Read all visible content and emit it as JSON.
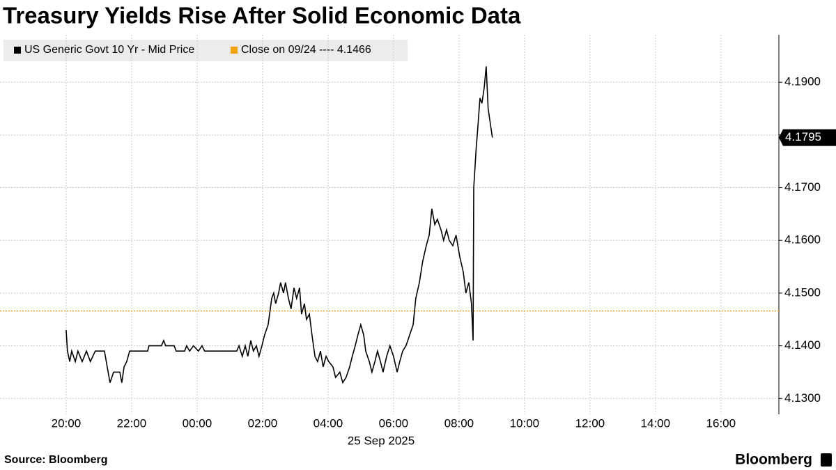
{
  "chart_data": {
    "type": "line",
    "title": "Treasury Yields Rise After Solid Economic Data",
    "xlabel": "25 Sep 2025",
    "source": "Source: Bloomberg",
    "brand": "Bloomberg",
    "xlim": [
      -2.02,
      21.77
    ],
    "xticks": [
      {
        "value": 0,
        "label": "20:00"
      },
      {
        "value": 2,
        "label": "22:00"
      },
      {
        "value": 4,
        "label": "00:00"
      },
      {
        "value": 6,
        "label": "02:00"
      },
      {
        "value": 8,
        "label": "04:00"
      },
      {
        "value": 10,
        "label": "06:00"
      },
      {
        "value": 12,
        "label": "08:00"
      },
      {
        "value": 14,
        "label": "10:00"
      },
      {
        "value": 16,
        "label": "12:00"
      },
      {
        "value": 18,
        "label": "14:00"
      },
      {
        "value": 20,
        "label": "16:00"
      }
    ],
    "ylim": [
      4.127,
      4.199
    ],
    "yticks": [
      {
        "value": 4.13,
        "label": "4.1300"
      },
      {
        "value": 4.14,
        "label": "4.1400"
      },
      {
        "value": 4.15,
        "label": "4.1500"
      },
      {
        "value": 4.16,
        "label": "4.1600"
      },
      {
        "value": 4.17,
        "label": "4.1700"
      },
      {
        "value": 4.18,
        "label": "4.1800"
      },
      {
        "value": 4.19,
        "label": "4.1900"
      }
    ],
    "grid": true,
    "x": [
      0,
      0.04,
      0.11,
      0.17,
      0.28,
      0.36,
      0.49,
      0.62,
      0.74,
      0.89,
      1.17,
      1.34,
      1.45,
      1.64,
      1.7,
      1.77,
      1.85,
      1.94,
      2.49,
      2.53,
      2.91,
      2.98,
      3.04,
      3.3,
      3.36,
      3.62,
      3.68,
      3.77,
      3.89,
      4.04,
      4.15,
      4.23,
      5.21,
      5.28,
      5.38,
      5.47,
      5.55,
      5.64,
      5.72,
      5.81,
      5.89,
      5.98,
      6.06,
      6.17,
      6.28,
      6.34,
      6.4,
      6.49,
      6.55,
      6.64,
      6.7,
      6.79,
      6.87,
      6.96,
      7.04,
      7.13,
      7.19,
      7.28,
      7.34,
      7.43,
      7.51,
      7.6,
      7.68,
      7.77,
      7.85,
      7.94,
      8.02,
      8.15,
      8.23,
      8.36,
      8.45,
      8.55,
      8.66,
      8.74,
      8.83,
      8.91,
      9.0,
      9.09,
      9.15,
      9.26,
      9.34,
      9.43,
      9.51,
      9.6,
      9.68,
      9.79,
      9.89,
      10.0,
      10.11,
      10.19,
      10.28,
      10.38,
      10.49,
      10.6,
      10.68,
      10.79,
      10.89,
      11.0,
      11.09,
      11.17,
      11.26,
      11.34,
      11.45,
      11.53,
      11.62,
      11.7,
      11.81,
      11.91,
      12.02,
      12.13,
      12.21,
      12.3,
      12.38,
      12.43,
      12.45,
      12.49,
      12.53,
      12.57,
      12.64,
      12.7,
      12.77,
      12.83,
      12.89,
      12.96,
      13.02
    ],
    "series": [
      {
        "name": "US Generic Govt 10 Yr - Mid Price",
        "color": "#000000",
        "values": [
          4.143,
          4.139,
          4.137,
          4.139,
          4.137,
          4.139,
          4.137,
          4.139,
          4.137,
          4.139,
          4.139,
          4.133,
          4.135,
          4.135,
          4.133,
          4.136,
          4.137,
          4.139,
          4.139,
          4.14,
          4.14,
          4.141,
          4.14,
          4.14,
          4.139,
          4.139,
          4.14,
          4.139,
          4.14,
          4.139,
          4.14,
          4.139,
          4.139,
          4.14,
          4.138,
          4.14,
          4.138,
          4.141,
          4.139,
          4.14,
          4.138,
          4.14,
          4.142,
          4.144,
          4.149,
          4.15,
          4.148,
          4.15,
          4.152,
          4.15,
          4.152,
          4.149,
          4.147,
          4.151,
          4.149,
          4.151,
          4.146,
          4.148,
          4.145,
          4.146,
          4.142,
          4.138,
          4.137,
          4.139,
          4.136,
          4.138,
          4.137,
          4.136,
          4.134,
          4.135,
          4.133,
          4.134,
          4.136,
          4.138,
          4.14,
          4.142,
          4.144,
          4.142,
          4.139,
          4.137,
          4.135,
          4.137,
          4.139,
          4.137,
          4.135,
          4.138,
          4.14,
          4.138,
          4.135,
          4.137,
          4.139,
          4.14,
          4.142,
          4.144,
          4.149,
          4.152,
          4.156,
          4.159,
          4.161,
          4.166,
          4.163,
          4.164,
          4.162,
          4.16,
          4.162,
          4.16,
          4.159,
          4.161,
          4.157,
          4.154,
          4.15,
          4.152,
          4.148,
          4.141,
          4.17,
          4.174,
          4.178,
          4.181,
          4.187,
          4.186,
          4.189,
          4.193,
          4.185,
          4.182,
          4.1795
        ]
      }
    ],
    "reference_line": {
      "label": "Close on 09/24 ---- 4.1466",
      "value": 4.1466,
      "color": "#f0a30a"
    }
  }
}
